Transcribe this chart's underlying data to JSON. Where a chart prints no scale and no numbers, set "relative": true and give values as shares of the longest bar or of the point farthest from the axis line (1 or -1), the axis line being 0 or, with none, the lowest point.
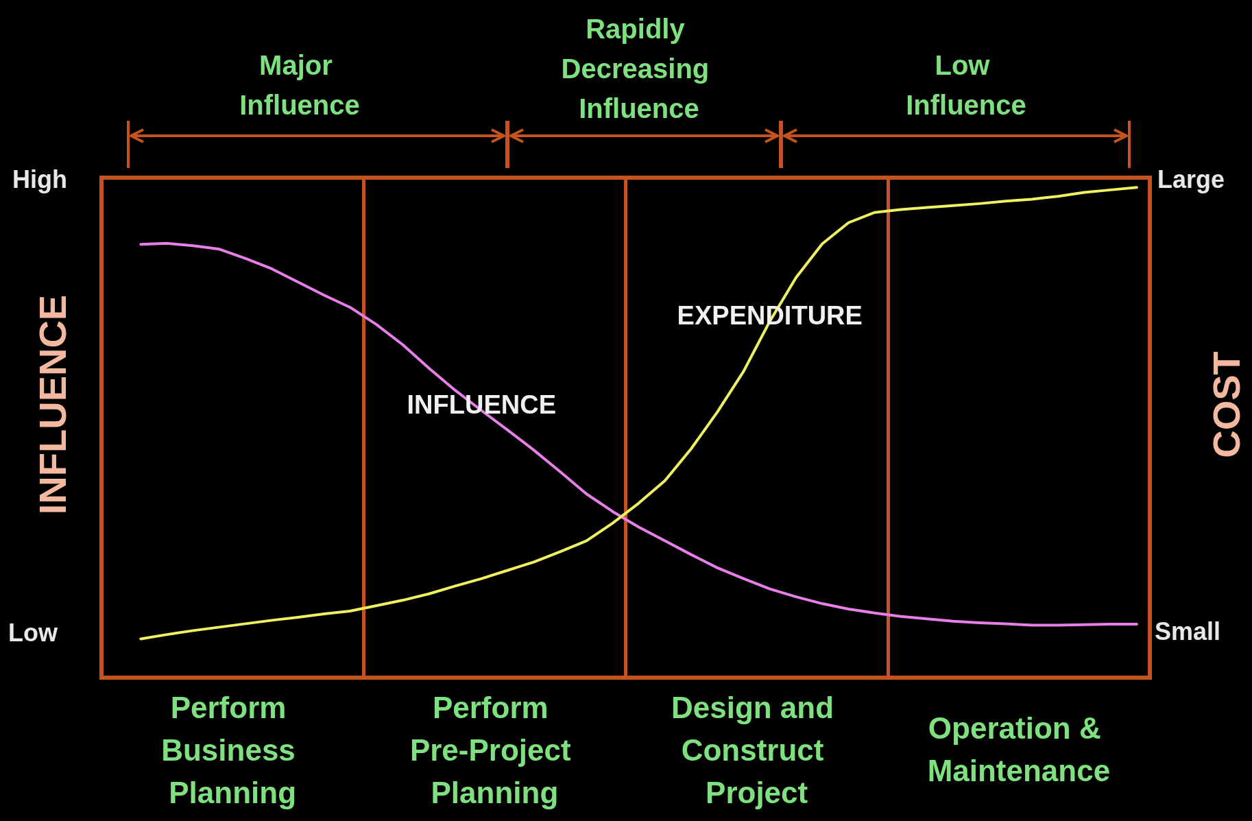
{
  "chart_data": {
    "type": "line",
    "relative": true,
    "ylabel": "INFLUENCE",
    "y2label": "COST",
    "grid": "x",
    "legend": false,
    "marker": "none",
    "line_style": "solid",
    "categories": [
      null,
      null,
      null,
      null,
      null,
      null,
      null,
      null,
      null,
      null,
      null,
      null,
      null,
      null,
      null,
      null,
      null,
      null,
      null,
      null,
      null,
      null,
      null,
      null,
      null,
      null,
      null,
      null,
      null,
      null,
      null,
      null,
      null,
      null,
      null,
      null,
      null,
      null,
      null,
      null
    ],
    "annotations": [
      "High",
      "Low",
      "Large",
      "Small",
      "Major Influence",
      "Rapidly Decreasing Influence",
      "Low Influence",
      "Perform Business Planning",
      "Perform Pre-Project Planning",
      "Design and Construct Project",
      "Operation & Maintenance"
    ],
    "series": [
      {
        "name": "INFLUENCE",
        "color": "#e87ee8",
        "values": [
          null,
          0.884,
          0.886,
          0.881,
          0.874,
          0.855,
          0.834,
          0.807,
          0.78,
          0.755,
          0.72,
          0.679,
          0.631,
          0.586,
          0.545,
          0.505,
          0.464,
          0.42,
          0.375,
          0.339,
          0.307,
          0.279,
          0.251,
          0.224,
          0.202,
          0.181,
          0.165,
          0.151,
          0.14,
          0.132,
          0.125,
          0.12,
          0.115,
          0.112,
          0.11,
          0.107,
          0.107,
          0.108,
          0.109,
          0.109
        ]
      },
      {
        "name": "EXPENDITURE",
        "color": "#f0f060",
        "values": [
          null,
          0.079,
          0.088,
          0.096,
          0.103,
          0.11,
          0.117,
          0.123,
          0.13,
          0.136,
          0.147,
          0.158,
          0.171,
          0.187,
          0.202,
          0.219,
          0.236,
          0.257,
          0.279,
          0.315,
          0.356,
          0.402,
          0.467,
          0.542,
          0.625,
          0.727,
          0.816,
          0.885,
          0.928,
          0.949,
          0.955,
          0.959,
          0.963,
          0.967,
          0.972,
          0.976,
          0.982,
          0.99,
          0.995,
          1
        ]
      }
    ]
  }
}
